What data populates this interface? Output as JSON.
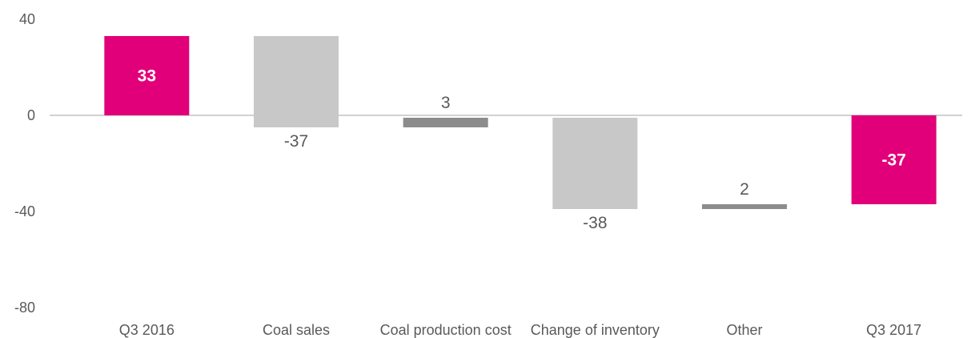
{
  "chart_data": {
    "type": "bar",
    "subtype": "waterfall",
    "categories": [
      "Q3 2016",
      "Coal sales",
      "Coal production cost",
      "Change of inventory",
      "Other",
      "Q3 2017"
    ],
    "bars": [
      {
        "category": "Q3 2016",
        "kind": "total",
        "start": 0,
        "end": 33,
        "label": "33",
        "color": "#e2007a"
      },
      {
        "category": "Coal sales",
        "kind": "delta",
        "start": 33,
        "end": -5,
        "label": "-37",
        "color": "#c8c8c8"
      },
      {
        "category": "Coal production cost",
        "kind": "delta",
        "start": -1,
        "end": -5,
        "label": "3",
        "color": "#8c8c8c"
      },
      {
        "category": "Change of inventory",
        "kind": "delta",
        "start": -1,
        "end": -39,
        "label": "-38",
        "color": "#c8c8c8"
      },
      {
        "category": "Other",
        "kind": "delta",
        "start": -37,
        "end": -39,
        "label": "2",
        "color": "#8c8c8c"
      },
      {
        "category": "Q3 2017",
        "kind": "total",
        "start": 0,
        "end": -37,
        "label": "-37",
        "color": "#e2007a"
      }
    ],
    "yticks": [
      "40",
      "0",
      "-40",
      "-80"
    ],
    "ylim": [
      -80,
      40
    ],
    "title": "",
    "xlabel": "",
    "ylabel": "",
    "grid": false,
    "legend": "none"
  }
}
